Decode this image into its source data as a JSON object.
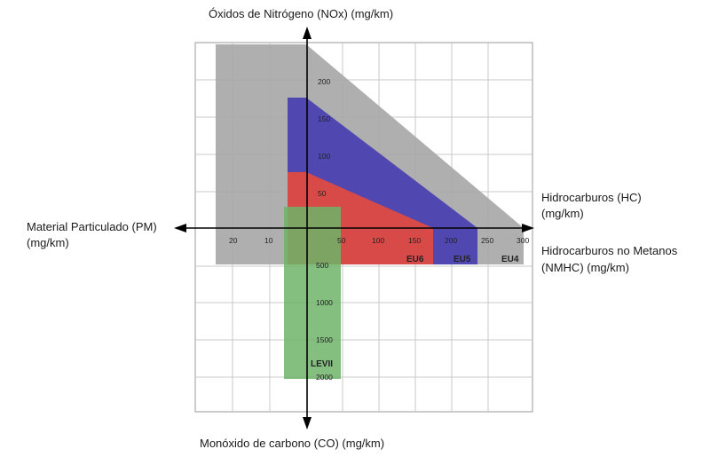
{
  "labels": {
    "y_top": "Óxidos de Nitrógeno (NOx) (mg/km)",
    "y_bottom": "Monóxido de carbono (CO) (mg/km)",
    "x_left_line1": "Material Particulado (PM)",
    "x_left_line2": "(mg/km)",
    "x_right_line1": "Hidrocarburos (HC)",
    "x_right_line2": "(mg/km)",
    "x_right2_line1": "Hidrocarburos no Metanos",
    "x_right2_line2": "(NMHC) (mg/km)"
  },
  "ticks": {
    "nox": [
      "200",
      "150",
      "100",
      "50"
    ],
    "hc": [
      "50",
      "100",
      "150",
      "200",
      "250",
      "300"
    ],
    "pm": [
      "20",
      "10"
    ],
    "co": [
      "500",
      "1000",
      "1500",
      "2000"
    ]
  },
  "zones": {
    "eu6": "EU6",
    "eu5": "EU5",
    "eu4": "EU4",
    "lev": "LEVII"
  },
  "colors": {
    "eu4": "#a8a8a8",
    "eu5": "#5048b0",
    "eu6": "#d84a48",
    "lev": "#6fb46a",
    "grid": "#c8c8c8",
    "axis": "#000000"
  }
}
